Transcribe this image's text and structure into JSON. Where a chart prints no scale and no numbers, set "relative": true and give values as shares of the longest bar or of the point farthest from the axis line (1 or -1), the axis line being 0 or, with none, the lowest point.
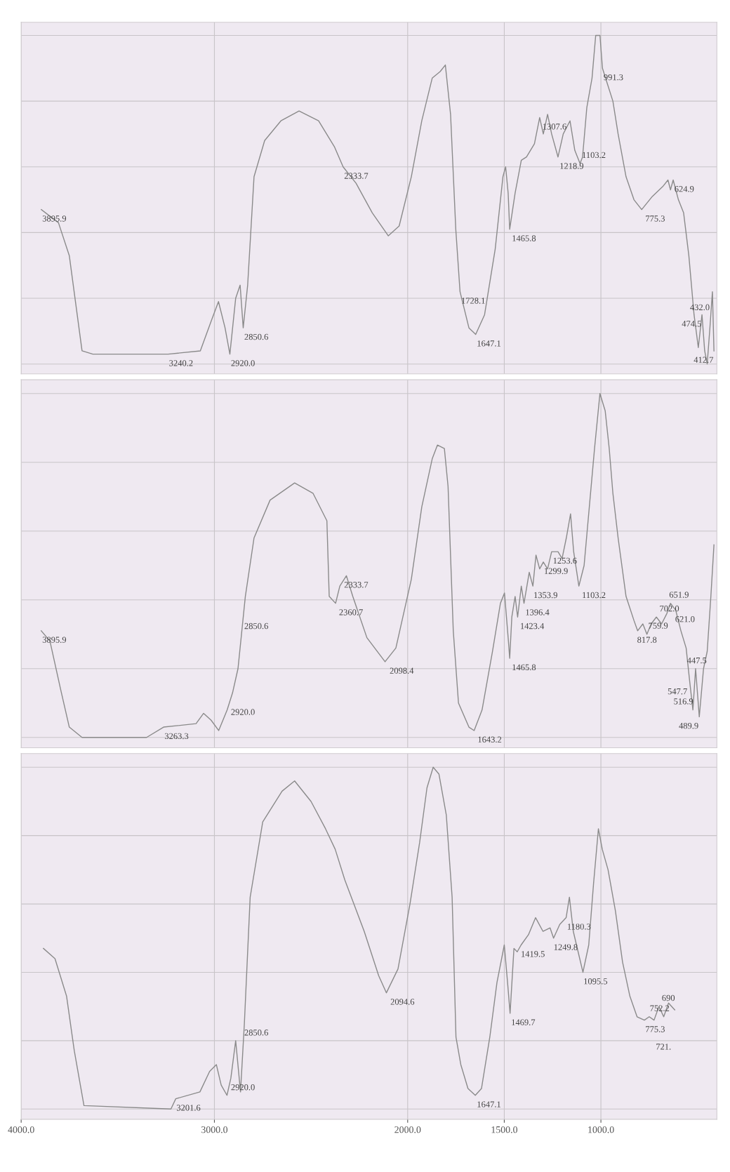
{
  "chart_data": [
    {
      "type": "line",
      "relative": true,
      "color": "#8a8a8a",
      "grid": true,
      "tick_labels": false,
      "xlim": [
        4000,
        400
      ],
      "xticks": [
        {
          "value": 4000,
          "label": null
        },
        {
          "value": 3000,
          "label": null
        },
        {
          "value": 2000,
          "label": null
        },
        {
          "value": 1500,
          "label": null
        },
        {
          "value": 1000,
          "label": null
        }
      ],
      "x": [
        3896,
        3807,
        3751,
        3685,
        3629,
        3240,
        3073,
        3017,
        2979,
        2945,
        2920,
        2890,
        2867,
        2851,
        2828,
        2795,
        2740,
        2656,
        2562,
        2461,
        2378,
        2334,
        2267,
        2183,
        2100,
        2044,
        1981,
        1927,
        1873,
        1832,
        1805,
        1778,
        1751,
        1729,
        1683,
        1648,
        1602,
        1547,
        1507,
        1493,
        1480,
        1472,
        1444,
        1412,
        1385,
        1344,
        1317,
        1298,
        1276,
        1255,
        1222,
        1195,
        1160,
        1135,
        1108,
        1095,
        1073,
        1046,
        1027,
        1005,
        992,
        965,
        938,
        911,
        870,
        829,
        789,
        734,
        680,
        653,
        640,
        626,
        599,
        572,
        545,
        518,
        496,
        477,
        463,
        450,
        436,
        423,
        415
      ],
      "values": [
        0.47,
        0.43,
        0.33,
        0.04,
        0.03,
        0.03,
        0.04,
        0.13,
        0.19,
        0.11,
        0.03,
        0.2,
        0.24,
        0.11,
        0.24,
        0.57,
        0.68,
        0.74,
        0.77,
        0.74,
        0.66,
        0.6,
        0.55,
        0.46,
        0.39,
        0.42,
        0.57,
        0.74,
        0.87,
        0.89,
        0.91,
        0.76,
        0.41,
        0.22,
        0.11,
        0.09,
        0.15,
        0.35,
        0.57,
        0.6,
        0.52,
        0.41,
        0.52,
        0.62,
        0.63,
        0.67,
        0.75,
        0.7,
        0.76,
        0.7,
        0.63,
        0.7,
        0.74,
        0.65,
        0.61,
        0.63,
        0.78,
        0.87,
        1.0,
        1.0,
        0.9,
        0.85,
        0.8,
        0.7,
        0.57,
        0.5,
        0.47,
        0.51,
        0.54,
        0.56,
        0.53,
        0.56,
        0.5,
        0.46,
        0.33,
        0.15,
        0.05,
        0.15,
        0.04,
        0.0,
        0.11,
        0.22,
        0.04
      ],
      "annotations": [
        {
          "text": "3895.9",
          "x": 3895.9,
          "y": 0.47
        },
        {
          "text": "3240.2",
          "x": 3240.2,
          "y": 0.03
        },
        {
          "text": "2850.6",
          "x": 2850.6,
          "y": 0.11
        },
        {
          "text": "2920.0",
          "x": 2920.0,
          "y": 0.03
        },
        {
          "text": "2333.7",
          "x": 2333.7,
          "y": 0.6
        },
        {
          "text": "1728.1",
          "x": 1728.1,
          "y": 0.22
        },
        {
          "text": "1647.1",
          "x": 1647.1,
          "y": 0.09
        },
        {
          "text": "1465.8",
          "x": 1465.8,
          "y": 0.41
        },
        {
          "text": "1307.6",
          "x": 1307.6,
          "y": 0.75
        },
        {
          "text": "1218.9",
          "x": 1218.9,
          "y": 0.63
        },
        {
          "text": "1103.2",
          "x": 1103.2,
          "y": 0.61
        },
        {
          "text": "991.3",
          "x": 991.3,
          "y": 0.9
        },
        {
          "text": "775.3",
          "x": 775.3,
          "y": 0.47
        },
        {
          "text": "624.9",
          "x": 624.9,
          "y": 0.56
        },
        {
          "text": "412.7",
          "x": 412.7,
          "y": 0.04
        },
        {
          "text": "432.0",
          "x": 432.0,
          "y": 0.2
        },
        {
          "text": "474.5",
          "x": 474.5,
          "y": 0.15
        }
      ]
    },
    {
      "type": "line",
      "relative": true,
      "color": "#8a8a8a",
      "grid": true,
      "tick_labels": false,
      "xlim": [
        4000,
        400
      ],
      "xticks": [
        {
          "value": 4000,
          "label": null
        },
        {
          "value": 3000,
          "label": null
        },
        {
          "value": 2000,
          "label": null
        },
        {
          "value": 1500,
          "label": null
        },
        {
          "value": 1000,
          "label": null
        }
      ],
      "x": [
        3896,
        3851,
        3796,
        3751,
        3685,
        3351,
        3263,
        3095,
        3056,
        3017,
        2978,
        2934,
        2906,
        2878,
        2840,
        2795,
        2712,
        2585,
        2490,
        2418,
        2406,
        2373,
        2351,
        2317,
        2284,
        2211,
        2117,
        2061,
        1981,
        1927,
        1873,
        1846,
        1810,
        1791,
        1764,
        1737,
        1683,
        1656,
        1615,
        1561,
        1520,
        1499,
        1480,
        1472,
        1461,
        1444,
        1431,
        1412,
        1398,
        1371,
        1352,
        1336,
        1317,
        1298,
        1276,
        1255,
        1222,
        1201,
        1179,
        1157,
        1141,
        1114,
        1087,
        1060,
        1033,
        1005,
        978,
        957,
        938,
        911,
        870,
        829,
        810,
        783,
        762,
        740,
        713,
        686,
        659,
        640,
        613,
        586,
        559,
        540,
        524,
        510,
        491,
        469,
        450,
        431,
        415
      ],
      "values": [
        0.31,
        0.28,
        0.14,
        0.03,
        0.0,
        0.0,
        0.03,
        0.04,
        0.07,
        0.05,
        0.02,
        0.08,
        0.13,
        0.2,
        0.41,
        0.58,
        0.69,
        0.74,
        0.71,
        0.63,
        0.41,
        0.39,
        0.44,
        0.47,
        0.41,
        0.29,
        0.22,
        0.26,
        0.46,
        0.67,
        0.81,
        0.85,
        0.84,
        0.73,
        0.31,
        0.1,
        0.03,
        0.02,
        0.08,
        0.25,
        0.39,
        0.42,
        0.29,
        0.23,
        0.35,
        0.41,
        0.35,
        0.44,
        0.39,
        0.48,
        0.44,
        0.53,
        0.49,
        0.51,
        0.49,
        0.54,
        0.54,
        0.52,
        0.58,
        0.65,
        0.54,
        0.44,
        0.5,
        0.67,
        0.84,
        1.0,
        0.95,
        0.84,
        0.71,
        0.58,
        0.41,
        0.34,
        0.31,
        0.33,
        0.3,
        0.33,
        0.35,
        0.33,
        0.36,
        0.39,
        0.37,
        0.31,
        0.26,
        0.16,
        0.08,
        0.2,
        0.06,
        0.2,
        0.25,
        0.41,
        0.56
      ],
      "annotations": [
        {
          "text": "3895.9",
          "x": 3895.9,
          "y": 0.31
        },
        {
          "text": "3263.3",
          "x": 3263.3,
          "y": 0.03
        },
        {
          "text": "2850.6",
          "x": 2850.6,
          "y": 0.35
        },
        {
          "text": "2920.0",
          "x": 2920.0,
          "y": 0.1
        },
        {
          "text": "2333.7",
          "x": 2333.7,
          "y": 0.47
        },
        {
          "text": "2360.7",
          "x": 2360.7,
          "y": 0.39
        },
        {
          "text": "2098.4",
          "x": 2098.4,
          "y": 0.22
        },
        {
          "text": "1643.2",
          "x": 1643.2,
          "y": 0.02
        },
        {
          "text": "1253.6",
          "x": 1253.6,
          "y": 0.54
        },
        {
          "text": "1299.9",
          "x": 1299.9,
          "y": 0.51
        },
        {
          "text": "1353.9",
          "x": 1353.9,
          "y": 0.44
        },
        {
          "text": "1396.4",
          "x": 1396.4,
          "y": 0.39
        },
        {
          "text": "1423.4",
          "x": 1423.4,
          "y": 0.35
        },
        {
          "text": "1465.8",
          "x": 1465.8,
          "y": 0.23
        },
        {
          "text": "1103.2",
          "x": 1103.2,
          "y": 0.44
        },
        {
          "text": "817.8",
          "x": 817.8,
          "y": 0.31
        },
        {
          "text": "759.9",
          "x": 759.9,
          "y": 0.3
        },
        {
          "text": "702.0",
          "x": 702.0,
          "y": 0.35
        },
        {
          "text": "651.9",
          "x": 651.9,
          "y": 0.39
        },
        {
          "text": "621.0",
          "x": 621.0,
          "y": 0.37
        },
        {
          "text": "547.7",
          "x": 547.7,
          "y": 0.16
        },
        {
          "text": "447.5",
          "x": 447.5,
          "y": 0.25
        },
        {
          "text": "489.9",
          "x": 489.9,
          "y": 0.06
        },
        {
          "text": "516.9",
          "x": 516.9,
          "y": 0.08
        }
      ]
    },
    {
      "type": "line",
      "relative": true,
      "color": "#8a8a8a",
      "grid": true,
      "tick_labels": "x",
      "xlim": [
        4000,
        400
      ],
      "xticks": [
        {
          "value": 4000,
          "label": "4000.0"
        },
        {
          "value": 3000,
          "label": "3000.0"
        },
        {
          "value": 2000,
          "label": "2000.0"
        },
        {
          "value": 1500,
          "label": "1500.0"
        },
        {
          "value": 1000,
          "label": "1000.0"
        }
      ],
      "x": [
        3885,
        3825,
        3765,
        3725,
        3675,
        3225,
        3200,
        3075,
        3025,
        2990,
        2965,
        2935,
        2915,
        2890,
        2865,
        2845,
        2815,
        2750,
        2650,
        2585,
        2500,
        2425,
        2375,
        2325,
        2225,
        2150,
        2110,
        2050,
        1988,
        1938,
        1900,
        1868,
        1838,
        1800,
        1770,
        1750,
        1725,
        1688,
        1650,
        1618,
        1575,
        1538,
        1500,
        1483,
        1470,
        1450,
        1433,
        1413,
        1375,
        1338,
        1300,
        1263,
        1245,
        1213,
        1180,
        1163,
        1143,
        1118,
        1093,
        1063,
        1038,
        1013,
        993,
        963,
        925,
        888,
        850,
        813,
        775,
        750,
        725,
        700,
        675,
        650,
        618
      ],
      "values": [
        0.47,
        0.44,
        0.33,
        0.17,
        0.01,
        0.0,
        0.03,
        0.05,
        0.11,
        0.13,
        0.07,
        0.04,
        0.09,
        0.2,
        0.05,
        0.25,
        0.62,
        0.84,
        0.93,
        0.96,
        0.9,
        0.82,
        0.76,
        0.67,
        0.52,
        0.39,
        0.34,
        0.41,
        0.6,
        0.78,
        0.94,
        1.0,
        0.98,
        0.86,
        0.62,
        0.21,
        0.13,
        0.06,
        0.04,
        0.06,
        0.21,
        0.37,
        0.48,
        0.37,
        0.28,
        0.47,
        0.46,
        0.48,
        0.51,
        0.56,
        0.52,
        0.53,
        0.5,
        0.54,
        0.56,
        0.62,
        0.52,
        0.46,
        0.4,
        0.48,
        0.66,
        0.82,
        0.76,
        0.7,
        0.58,
        0.43,
        0.33,
        0.27,
        0.26,
        0.27,
        0.26,
        0.3,
        0.27,
        0.31,
        0.29
      ],
      "annotations": [
        {
          "text": "3201.6",
          "x": 3201.6,
          "y": 0.03
        },
        {
          "text": "2850.6",
          "x": 2850.6,
          "y": 0.25
        },
        {
          "text": "2920.0",
          "x": 2920.0,
          "y": 0.09
        },
        {
          "text": "2094.6",
          "x": 2094.6,
          "y": 0.34
        },
        {
          "text": "1647.1",
          "x": 1647.1,
          "y": 0.04
        },
        {
          "text": "1469.7",
          "x": 1469.7,
          "y": 0.28
        },
        {
          "text": "1419.5",
          "x": 1419.5,
          "y": 0.48
        },
        {
          "text": "1180.3",
          "x": 1180.3,
          "y": 0.56
        },
        {
          "text": "1249.8",
          "x": 1249.8,
          "y": 0.5
        },
        {
          "text": "1095.5",
          "x": 1095.5,
          "y": 0.4
        },
        {
          "text": "775.3",
          "x": 775.3,
          "y": 0.26
        },
        {
          "text": "752.2",
          "x": 752.2,
          "y": 0.27
        },
        {
          "text": "690",
          "x": 690,
          "y": 0.3
        },
        {
          "text": "721.",
          "x": 721,
          "y": 0.26
        }
      ]
    }
  ]
}
